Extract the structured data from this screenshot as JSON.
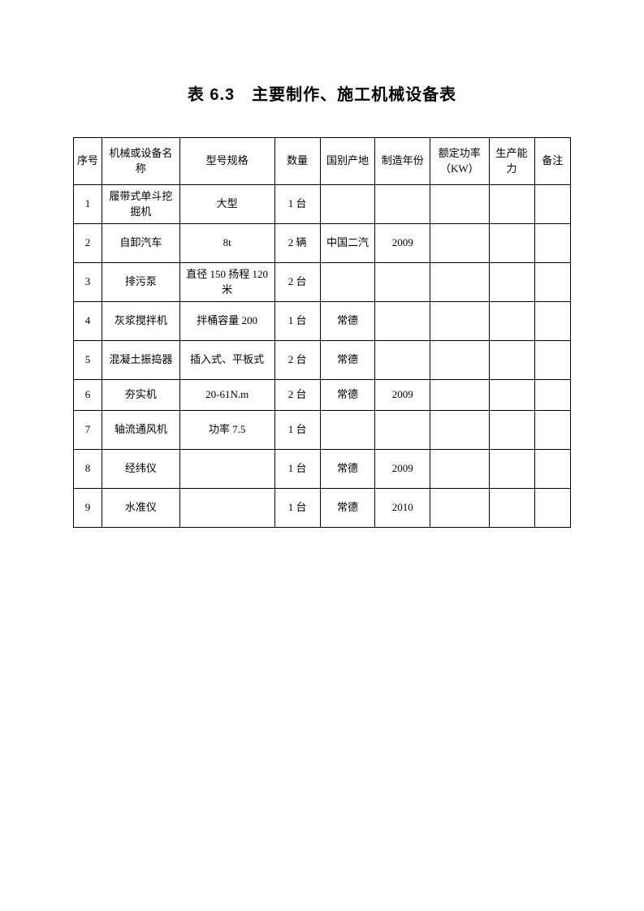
{
  "title": "表 6.3　主要制作、施工机械设备表",
  "table": {
    "columns": [
      "序号",
      "机械或设备名称",
      "型号规格",
      "数量",
      "国别产地",
      "制造年份",
      "额定功率（KW）",
      "生产能力",
      "备注"
    ],
    "rows": [
      {
        "seq": "1",
        "name": "履带式单斗挖掘机",
        "spec": "大型",
        "qty": "1 台",
        "origin": "",
        "year": "",
        "power": "",
        "capacity": "",
        "note": ""
      },
      {
        "seq": "2",
        "name": "自卸汽车",
        "spec": "8t",
        "qty": "2 辆",
        "origin": "中国二汽",
        "year": "2009",
        "power": "",
        "capacity": "",
        "note": ""
      },
      {
        "seq": "3",
        "name": "排污泵",
        "spec": "直径 150 扬程 120 米",
        "qty": "2 台",
        "origin": "",
        "year": "",
        "power": "",
        "capacity": "",
        "note": ""
      },
      {
        "seq": "4",
        "name": "灰浆搅拌机",
        "spec": "拌桶容量 200",
        "qty": "1 台",
        "origin": "常德",
        "year": "",
        "power": "",
        "capacity": "",
        "note": ""
      },
      {
        "seq": "5",
        "name": "混凝土振捣器",
        "spec": "插入式、平板式",
        "qty": "2 台",
        "origin": "常德",
        "year": "",
        "power": "",
        "capacity": "",
        "note": ""
      },
      {
        "seq": "6",
        "name": "夯实机",
        "spec": "20-61N.m",
        "qty": "2 台",
        "origin": "常德",
        "year": "2009",
        "power": "",
        "capacity": "",
        "note": ""
      },
      {
        "seq": "7",
        "name": "轴流通风机",
        "spec": "功率 7.5",
        "qty": "1 台",
        "origin": "",
        "year": "",
        "power": "",
        "capacity": "",
        "note": ""
      },
      {
        "seq": "8",
        "name": "经纬仪",
        "spec": "",
        "qty": "1 台",
        "origin": "常德",
        "year": "2009",
        "power": "",
        "capacity": "",
        "note": ""
      },
      {
        "seq": "9",
        "name": "水准仪",
        "spec": "",
        "qty": "1 台",
        "origin": "常德",
        "year": "2010",
        "power": "",
        "capacity": "",
        "note": ""
      }
    ],
    "short_row_index": 5,
    "border_color": "#000000",
    "background_color": "#ffffff",
    "font_size": 13,
    "title_font_size": 20
  }
}
